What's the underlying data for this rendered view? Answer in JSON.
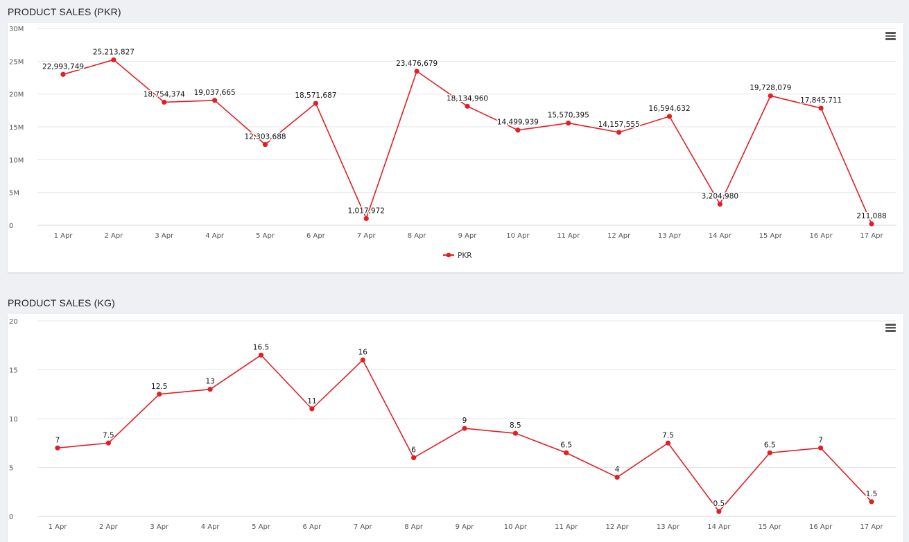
{
  "charts": [
    {
      "section_title": "PRODUCT SALES (PKR)",
      "menu_icon": "hamburger-menu-icon",
      "chart_data": {
        "type": "line",
        "categories": [
          "1 Apr",
          "2 Apr",
          "3 Apr",
          "4 Apr",
          "5 Apr",
          "6 Apr",
          "7 Apr",
          "8 Apr",
          "9 Apr",
          "10 Apr",
          "11 Apr",
          "12 Apr",
          "13 Apr",
          "14 Apr",
          "15 Apr",
          "16 Apr",
          "17 Apr"
        ],
        "series": [
          {
            "name": "PKR",
            "color": "#e31e24",
            "values": [
              22993749,
              25213827,
              18754374,
              19037665,
              12303688,
              18571687,
              1017972,
              23476679,
              18134960,
              14499939,
              15570395,
              14157555,
              16594632,
              3204980,
              19728079,
              17845711,
              211088
            ],
            "data_labels": [
              "22,993,749",
              "25,213,827",
              "18,754,374",
              "19,037,665",
              "12,303,688",
              "18,571,687",
              "1,017,972",
              "23,476,679",
              "18,134,960",
              "14,499,939",
              "15,570,395",
              "14,157,555",
              "16,594,632",
              "3,204,980",
              "19,728,079",
              "17,845,711",
              "211,088"
            ]
          }
        ],
        "y_ticks": [
          "0",
          "5M",
          "10M",
          "15M",
          "20M",
          "25M",
          "30M"
        ],
        "ylim": [
          0,
          30000000
        ],
        "grid": true,
        "legend": "bottom-center"
      }
    },
    {
      "section_title": "PRODUCT SALES (KG)",
      "menu_icon": "hamburger-menu-icon",
      "chart_data": {
        "type": "line",
        "categories": [
          "1 Apr",
          "2 Apr",
          "3 Apr",
          "4 Apr",
          "5 Apr",
          "6 Apr",
          "7 Apr",
          "8 Apr",
          "9 Apr",
          "10 Apr",
          "11 Apr",
          "12 Apr",
          "13 Apr",
          "14 Apr",
          "15 Apr",
          "16 Apr",
          "17 Apr"
        ],
        "series": [
          {
            "color": "#e31e24",
            "values": [
              7,
              7.5,
              12.5,
              13,
              16.5,
              11,
              16,
              6,
              9,
              8.5,
              6.5,
              4,
              7.5,
              0.5,
              6.5,
              7,
              1.5
            ],
            "data_labels": [
              "7",
              "7.5",
              "12.5",
              "13",
              "16.5",
              "11",
              "16",
              "6",
              "9",
              "8.5",
              "6.5",
              "4",
              "7.5",
              "0.5",
              "6.5",
              "7",
              "1.5"
            ]
          }
        ],
        "y_ticks": [
          "0",
          "5",
          "10",
          "15",
          "20"
        ],
        "ylim": [
          0,
          20
        ],
        "grid": true
      }
    }
  ]
}
